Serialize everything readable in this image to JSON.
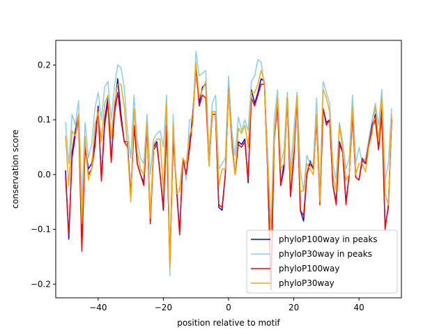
{
  "chart_data": {
    "type": "line",
    "title": "",
    "xlabel": "position relative to motif",
    "ylabel": "conservation score",
    "xlim": [
      -53,
      53
    ],
    "ylim": [
      -0.225,
      0.245
    ],
    "xticks": [
      -40,
      -20,
      0,
      20,
      40
    ],
    "xtick_labels": [
      "−40",
      "−20",
      "0",
      "20",
      "40"
    ],
    "yticks": [
      -0.2,
      -0.1,
      0.0,
      0.1,
      0.2
    ],
    "ytick_labels": [
      "−0.2",
      "−0.1",
      "0.0",
      "0.1",
      "0.2"
    ],
    "grid": false,
    "legend_position": "lower-right",
    "x": [
      -50,
      -49,
      -48,
      -47,
      -46,
      -45,
      -44,
      -43,
      -42,
      -41,
      -40,
      -39,
      -38,
      -37,
      -36,
      -35,
      -34,
      -33,
      -32,
      -31,
      -30,
      -29,
      -28,
      -27,
      -26,
      -25,
      -24,
      -23,
      -22,
      -21,
      -20,
      -19,
      -18,
      -17,
      -16,
      -15,
      -14,
      -13,
      -12,
      -11,
      -10,
      -9,
      -8,
      -7,
      -6,
      -5,
      -4,
      -3,
      -2,
      -1,
      0,
      1,
      2,
      3,
      4,
      5,
      6,
      7,
      8,
      9,
      10,
      11,
      12,
      13,
      14,
      15,
      16,
      17,
      18,
      19,
      20,
      21,
      22,
      23,
      24,
      25,
      26,
      27,
      28,
      29,
      30,
      31,
      32,
      33,
      34,
      35,
      36,
      37,
      38,
      39,
      40,
      41,
      42,
      43,
      44,
      45,
      46,
      47,
      48,
      49,
      50
    ],
    "series": [
      {
        "name": "phyloP100way in peaks",
        "color": "#0000ff",
        "values": [
          0.007,
          -0.118,
          0.04,
          0.08,
          0.11,
          -0.13,
          0.055,
          0.01,
          0.02,
          0.06,
          0.125,
          -0.01,
          0.1,
          0.14,
          0.025,
          0.12,
          0.175,
          0.11,
          0.06,
          0.06,
          -0.04,
          0.09,
          0.02,
          0.0,
          -0.015,
          0.09,
          -0.085,
          0.05,
          0.06,
          0.0,
          -0.065,
          0.09,
          -0.16,
          0.07,
          -0.02,
          -0.105,
          0.03,
          0.0,
          0.05,
          0.11,
          0.2,
          0.13,
          0.16,
          0.165,
          0.02,
          0.11,
          0.11,
          -0.06,
          -0.065,
          0.0,
          0.16,
          0.06,
          0.0,
          0.06,
          0.055,
          0.065,
          -0.015,
          0.155,
          0.13,
          0.15,
          0.175,
          0.17,
          0.0,
          -0.21,
          0.07,
          0.13,
          -0.02,
          0.02,
          0.14,
          -0.04,
          0.03,
          0.145,
          -0.065,
          -0.085,
          0.0,
          0.025,
          0.01,
          0.1,
          -0.05,
          0.12,
          0.095,
          0.1,
          -0.02,
          -0.05,
          0.06,
          0.04,
          -0.05,
          0.0,
          0.11,
          -0.005,
          -0.01,
          0.025,
          0.02,
          0.06,
          0.09,
          0.11,
          0.05,
          0.12,
          -0.095,
          -0.06,
          0.1
        ]
      },
      {
        "name": "phyloP30way in peaks",
        "color": "#87ceeb",
        "values": [
          0.095,
          0.02,
          0.11,
          0.09,
          0.135,
          -0.05,
          0.095,
          0.03,
          0.055,
          0.12,
          0.15,
          0.1,
          0.16,
          0.17,
          0.1,
          0.16,
          0.2,
          0.195,
          0.16,
          0.08,
          0.03,
          0.145,
          0.06,
          0.03,
          0.02,
          0.11,
          0.0,
          0.065,
          0.075,
          0.08,
          0.05,
          0.145,
          -0.185,
          0.11,
          -0.03,
          -0.025,
          0.03,
          -0.01,
          0.1,
          0.1,
          0.225,
          0.18,
          0.185,
          0.19,
          0.04,
          0.13,
          0.145,
          0.01,
          0.02,
          0.03,
          0.18,
          0.08,
          0.035,
          0.105,
          0.08,
          0.1,
          0.08,
          0.17,
          0.18,
          0.21,
          0.205,
          0.16,
          0.04,
          -0.1,
          0.1,
          0.155,
          0.02,
          0.045,
          0.15,
          0.01,
          0.08,
          0.15,
          0.01,
          -0.03,
          0.035,
          0.02,
          0.02,
          0.14,
          -0.03,
          0.17,
          0.15,
          0.13,
          0.02,
          -0.01,
          0.095,
          0.06,
          0.01,
          0.03,
          0.145,
          0.02,
          0.05,
          0.02,
          0.03,
          0.065,
          0.1,
          0.13,
          0.09,
          0.155,
          -0.01,
          0.02,
          0.12
        ]
      },
      {
        "name": "phyloP100way",
        "color": "#ff0000",
        "values": [
          -0.005,
          -0.11,
          0.03,
          0.07,
          0.1,
          -0.14,
          0.05,
          0.0,
          0.01,
          0.05,
          0.12,
          -0.012,
          0.09,
          0.13,
          0.022,
          0.11,
          0.15,
          0.1,
          0.06,
          0.05,
          -0.04,
          0.09,
          0.02,
          0.0,
          -0.02,
          0.085,
          -0.09,
          0.045,
          0.055,
          0.0,
          -0.06,
          0.085,
          -0.165,
          0.065,
          -0.025,
          -0.11,
          0.03,
          0.0,
          0.045,
          0.1,
          0.195,
          0.125,
          0.145,
          0.14,
          0.018,
          0.11,
          0.11,
          -0.055,
          -0.06,
          0.0,
          0.155,
          0.055,
          0.0,
          0.055,
          0.05,
          0.06,
          -0.01,
          0.14,
          0.125,
          0.145,
          0.165,
          0.165,
          0.0,
          -0.205,
          0.065,
          0.125,
          -0.02,
          0.01,
          0.14,
          -0.04,
          0.03,
          0.14,
          -0.065,
          -0.075,
          0.0,
          0.02,
          0.01,
          0.1,
          -0.055,
          0.12,
          0.09,
          0.1,
          -0.02,
          -0.055,
          0.055,
          0.04,
          -0.055,
          0.0,
          0.11,
          -0.005,
          -0.01,
          0.03,
          0.02,
          0.055,
          0.085,
          0.1,
          0.045,
          0.11,
          -0.1,
          -0.055,
          0.1
        ]
      },
      {
        "name": "phyloP30way",
        "color": "#ffa500",
        "values": [
          0.07,
          -0.02,
          0.08,
          0.07,
          0.11,
          -0.09,
          0.07,
          -0.01,
          0.01,
          0.09,
          0.115,
          0.06,
          0.13,
          0.145,
          0.065,
          0.13,
          0.165,
          0.165,
          0.125,
          0.05,
          -0.05,
          0.12,
          0.04,
          0.01,
          0.0,
          0.095,
          -0.08,
          0.055,
          0.065,
          0.065,
          -0.03,
          0.13,
          -0.17,
          0.09,
          -0.035,
          -0.03,
          0.03,
          0.02,
          0.07,
          0.09,
          0.205,
          0.14,
          0.155,
          0.17,
          0.015,
          0.115,
          0.115,
          -0.02,
          0.01,
          0.01,
          0.155,
          0.05,
          0.0,
          0.085,
          0.075,
          0.09,
          0.05,
          0.15,
          0.15,
          0.165,
          0.19,
          0.17,
          0.01,
          -0.1,
          0.07,
          0.14,
          0.01,
          0.02,
          0.14,
          -0.01,
          0.05,
          0.145,
          -0.03,
          -0.03,
          0.02,
          0.01,
          0.0,
          0.11,
          -0.05,
          0.155,
          0.14,
          0.115,
          0.0,
          -0.03,
          0.09,
          0.045,
          -0.01,
          0.0,
          0.125,
          0.0,
          0.02,
          0.02,
          0.005,
          0.05,
          0.075,
          0.125,
          0.06,
          0.14,
          -0.035,
          -0.055,
          0.11
        ]
      }
    ]
  }
}
